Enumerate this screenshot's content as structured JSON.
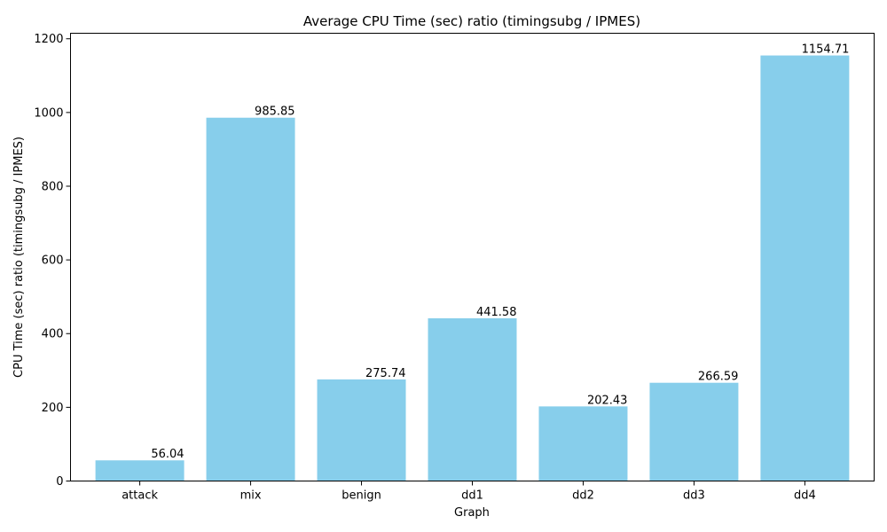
{
  "chart_data": {
    "type": "bar",
    "title": "Average CPU Time (sec) ratio (timingsubg / IPMES)",
    "xlabel": "Graph",
    "ylabel": "CPU Time (sec) ratio (timingsubg / IPMES)",
    "categories": [
      "attack",
      "mix",
      "benign",
      "dd1",
      "dd2",
      "dd3",
      "dd4"
    ],
    "values": [
      56.04,
      985.85,
      275.74,
      441.58,
      202.43,
      266.59,
      1154.71
    ],
    "value_labels": [
      "56.04",
      "985.85",
      "275.74",
      "441.58",
      "202.43",
      "266.59",
      "1154.71"
    ],
    "ylim": [
      0,
      1215
    ],
    "yticks": [
      0,
      200,
      400,
      600,
      800,
      1000,
      1200
    ],
    "bar_color": "#87ceeb",
    "grid": false,
    "legend": "none"
  }
}
